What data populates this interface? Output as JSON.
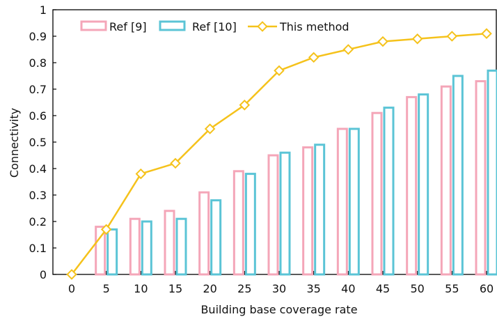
{
  "chart_data": {
    "type": "bar",
    "xlabel": "Building base coverage rate",
    "ylabel": "Connectivity",
    "x_ticks": [
      "0",
      "5",
      "10",
      "15",
      "20",
      "25",
      "30",
      "35",
      "40",
      "45",
      "50",
      "55",
      "60"
    ],
    "y_ticks": [
      "0",
      "0.1",
      "0.2",
      "0.3",
      "0.4",
      "0.5",
      "0.6",
      "0.7",
      "0.8",
      "0.9",
      "1"
    ],
    "xlim": [
      0,
      60
    ],
    "ylim": [
      0,
      1
    ],
    "grid": false,
    "legend_position": "top-left",
    "categories": [
      5,
      10,
      15,
      20,
      25,
      30,
      35,
      40,
      45,
      50,
      55,
      60
    ],
    "series": [
      {
        "name": "Ref [9]",
        "type": "bar",
        "color": "#f4a6b8",
        "values": [
          0.18,
          0.21,
          0.24,
          0.31,
          0.39,
          0.45,
          0.48,
          0.55,
          0.61,
          0.67,
          0.71,
          0.73
        ]
      },
      {
        "name": "Ref [10]",
        "type": "bar",
        "color": "#5bc4d6",
        "values": [
          0.17,
          0.2,
          0.21,
          0.28,
          0.38,
          0.46,
          0.49,
          0.55,
          0.63,
          0.68,
          0.75,
          0.77
        ]
      },
      {
        "name": "This method",
        "type": "line",
        "color": "#f5c21b",
        "x": [
          0,
          5,
          10,
          15,
          20,
          25,
          30,
          35,
          40,
          45,
          50,
          55,
          60
        ],
        "values": [
          0.0,
          0.17,
          0.38,
          0.42,
          0.55,
          0.64,
          0.77,
          0.82,
          0.85,
          0.88,
          0.89,
          0.9,
          0.91
        ]
      }
    ]
  }
}
